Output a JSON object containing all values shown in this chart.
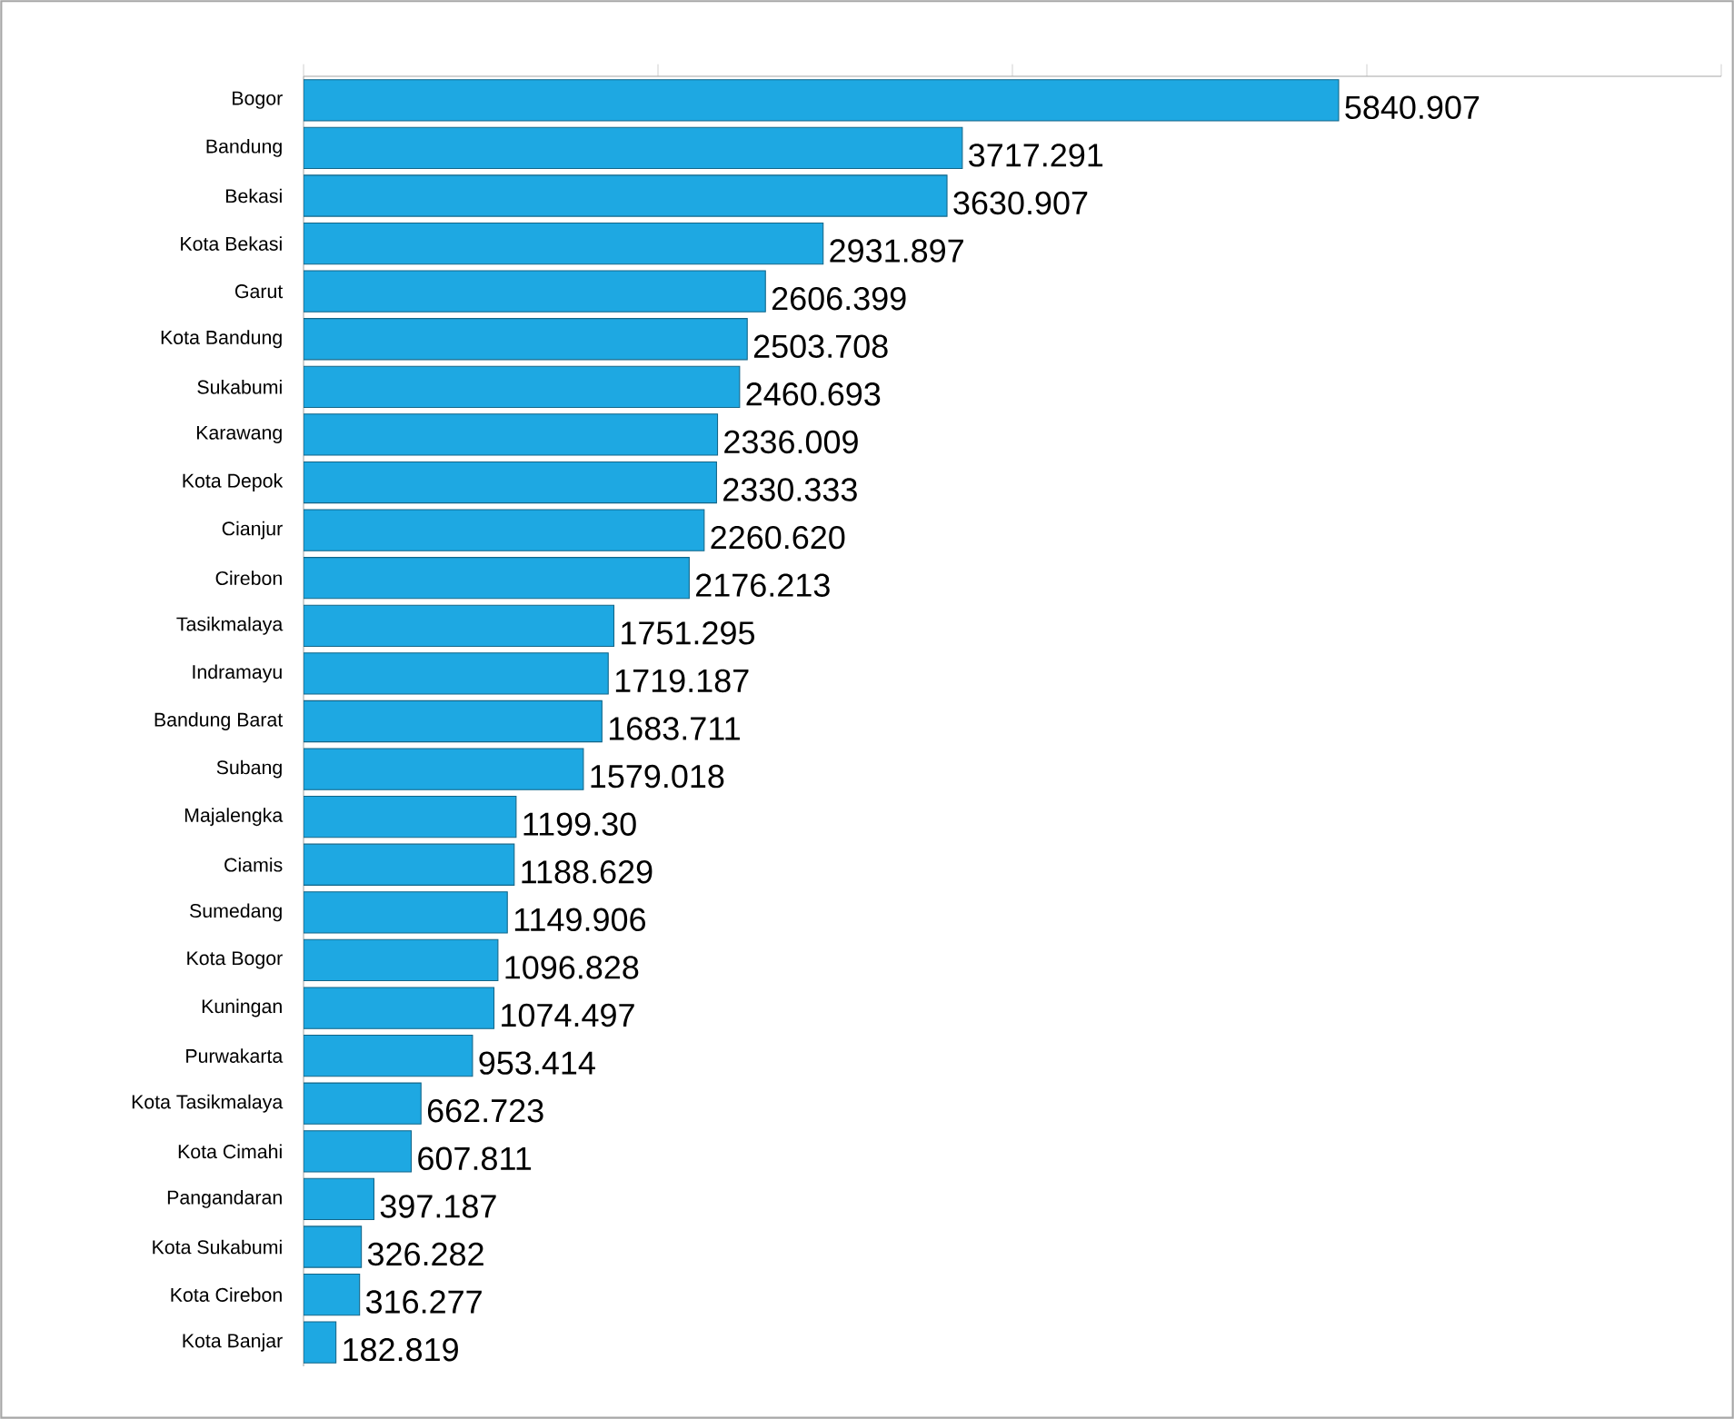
{
  "chart_data": {
    "type": "bar",
    "orientation": "horizontal",
    "categories": [
      "Bogor",
      "Bandung",
      "Bekasi",
      "Kota Bekasi",
      "Garut",
      "Kota Bandung",
      "Sukabumi",
      "Karawang",
      "Kota Depok",
      "Cianjur",
      "Cirebon",
      "Tasikmalaya",
      "Indramayu",
      "Bandung Barat",
      "Subang",
      "Majalengka",
      "Ciamis",
      "Sumedang",
      "Kota Bogor",
      "Kuningan",
      "Purwakarta",
      "Kota Tasikmalaya",
      "Kota Cimahi",
      "Pangandaran",
      "Kota Sukabumi",
      "Kota Cirebon",
      "Kota Banjar"
    ],
    "values": [
      5840.907,
      3717.291,
      3630.907,
      2931.897,
      2606.399,
      2503.708,
      2460.693,
      2336.009,
      2330.333,
      2260.62,
      2176.213,
      1751.295,
      1719.187,
      1683.711,
      1579.018,
      1199.3,
      1188.629,
      1149.906,
      1096.828,
      1074.497,
      953.414,
      662.723,
      607.811,
      397.187,
      326.282,
      316.277,
      182.819
    ],
    "value_labels": [
      "5840.907",
      "3717.291",
      "3630.907",
      "2931.897",
      "2606.399",
      "2503.708",
      "2460.693",
      "2336.009",
      "2330.333",
      "2260.620",
      "2176.213",
      "1751.295",
      "1719.187",
      "1683.711",
      "1579.018",
      "1199.30",
      "1188.629",
      "1149.906",
      "1096.828",
      "1074.497",
      "953.414",
      "662.723",
      "607.811",
      "397.187",
      "326.282",
      "316.277",
      "182.819"
    ],
    "color": "#1ea8e2",
    "xlim": [
      0,
      8000
    ],
    "xticks": [
      {
        "value": 0,
        "label": null
      },
      {
        "value": 2000,
        "label": null
      },
      {
        "value": 4000,
        "label": null
      },
      {
        "value": 6000,
        "label": null
      },
      {
        "value": 8000,
        "label": null
      }
    ],
    "tick_labels": "y"
  }
}
